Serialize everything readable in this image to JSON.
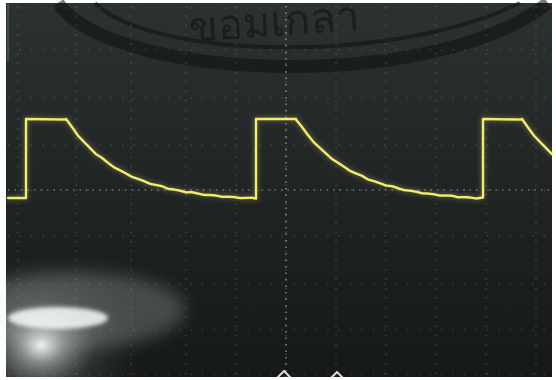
{
  "screen": {
    "trace_color": "#f2ec63",
    "grid_color": "#b9c2c4",
    "background_color": "#2a2f2f",
    "watermark_color": "#0e1112"
  },
  "waveform": {
    "description_kind": "square pulse with exponential decay",
    "pulses_visible": 3
  },
  "watermark": {
    "text": "ขอมเกลา"
  }
}
